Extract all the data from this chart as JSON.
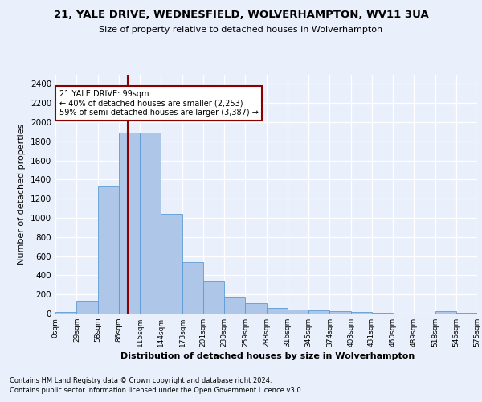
{
  "title1": "21, YALE DRIVE, WEDNESFIELD, WOLVERHAMPTON, WV11 3UA",
  "title2": "Size of property relative to detached houses in Wolverhampton",
  "xlabel": "Distribution of detached houses by size in Wolverhampton",
  "ylabel": "Number of detached properties",
  "bar_values": [
    15,
    125,
    1340,
    1890,
    1890,
    1040,
    540,
    335,
    165,
    110,
    60,
    40,
    30,
    25,
    15,
    5,
    0,
    0,
    25,
    5
  ],
  "bin_edges": [
    0,
    29,
    58,
    86,
    115,
    144,
    173,
    201,
    230,
    259,
    288,
    316,
    345,
    374,
    403,
    431,
    460,
    489,
    518,
    546,
    575
  ],
  "tick_labels": [
    "0sqm",
    "29sqm",
    "58sqm",
    "86sqm",
    "115sqm",
    "144sqm",
    "173sqm",
    "201sqm",
    "230sqm",
    "259sqm",
    "288sqm",
    "316sqm",
    "345sqm",
    "374sqm",
    "403sqm",
    "431sqm",
    "460sqm",
    "489sqm",
    "518sqm",
    "546sqm",
    "575sqm"
  ],
  "bar_color": "#aec6e8",
  "bar_edgecolor": "#5b9bd5",
  "vline_x": 99,
  "vline_color": "#8b0000",
  "annotation_text": "21 YALE DRIVE: 99sqm\n← 40% of detached houses are smaller (2,253)\n59% of semi-detached houses are larger (3,387) →",
  "annotation_box_color": "#ffffff",
  "annotation_box_edgecolor": "#8b0000",
  "ylim": [
    0,
    2500
  ],
  "yticks": [
    0,
    200,
    400,
    600,
    800,
    1000,
    1200,
    1400,
    1600,
    1800,
    2000,
    2200,
    2400
  ],
  "footnote1": "Contains HM Land Registry data © Crown copyright and database right 2024.",
  "footnote2": "Contains public sector information licensed under the Open Government Licence v3.0.",
  "bg_color": "#eaf0fb",
  "plot_bg_color": "#eaf0fb"
}
